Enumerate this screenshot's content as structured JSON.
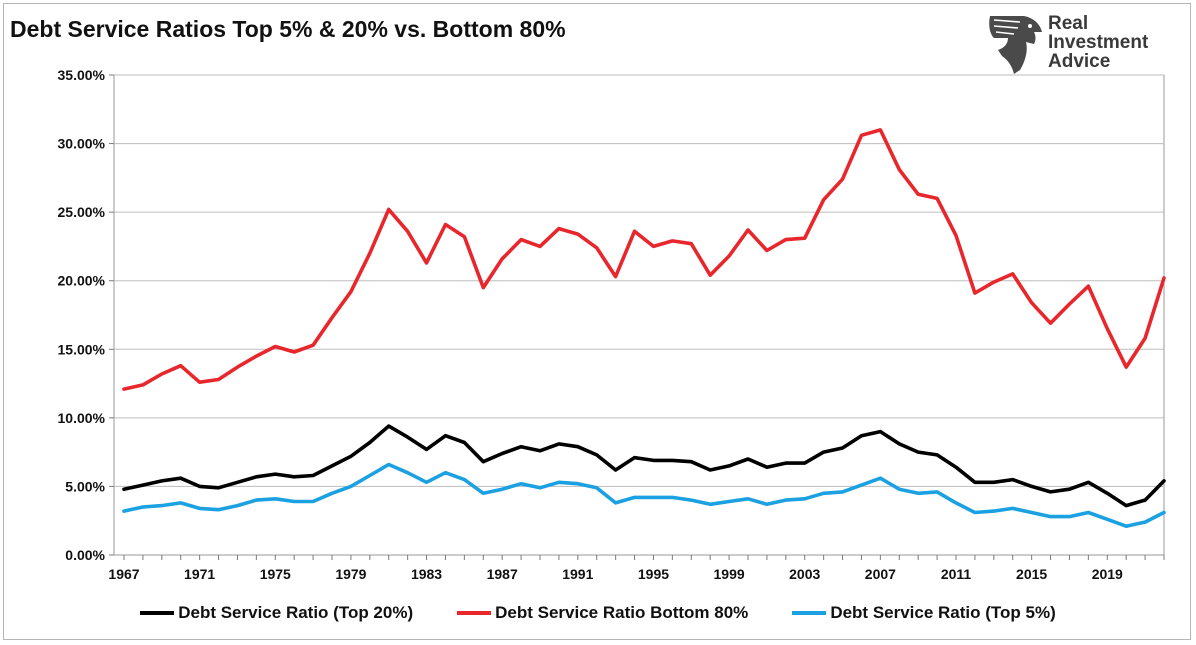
{
  "chart_data": {
    "type": "line",
    "title": "Debt Service Ratios Top 5% & 20% vs. Bottom 80%",
    "x": [
      1967,
      1968,
      1969,
      1970,
      1971,
      1972,
      1973,
      1974,
      1975,
      1976,
      1977,
      1978,
      1979,
      1980,
      1981,
      1982,
      1983,
      1984,
      1985,
      1986,
      1987,
      1988,
      1989,
      1990,
      1991,
      1992,
      1993,
      1994,
      1995,
      1996,
      1997,
      1998,
      1999,
      2000,
      2001,
      2002,
      2003,
      2004,
      2005,
      2006,
      2007,
      2008,
      2009,
      2010,
      2011,
      2012,
      2013,
      2014,
      2015,
      2016,
      2017,
      2018,
      2019,
      2020,
      2021,
      2022
    ],
    "x_tick_labels": [
      "1967",
      "1971",
      "1975",
      "1979",
      "1983",
      "1987",
      "1991",
      "1995",
      "1999",
      "2003",
      "2007",
      "2011",
      "2015",
      "2019"
    ],
    "y_tick_labels": [
      "0.00%",
      "5.00%",
      "10.00%",
      "15.00%",
      "20.00%",
      "25.00%",
      "30.00%",
      "35.00%"
    ],
    "ylim": [
      0,
      35
    ],
    "grid": "horizontal",
    "legend_position": "bottom",
    "series": [
      {
        "name": "Debt Service Ratio (Top 20%)",
        "color": "#000000",
        "values": [
          4.8,
          5.1,
          5.4,
          5.6,
          5.0,
          4.9,
          5.3,
          5.7,
          5.9,
          5.7,
          5.8,
          6.5,
          7.2,
          8.2,
          9.4,
          8.6,
          7.7,
          8.7,
          8.2,
          6.8,
          7.4,
          7.9,
          7.6,
          8.1,
          7.9,
          7.3,
          6.2,
          7.1,
          6.9,
          6.9,
          6.8,
          6.2,
          6.5,
          7.0,
          6.4,
          6.7,
          6.7,
          7.5,
          7.8,
          8.7,
          9.0,
          8.1,
          7.5,
          7.3,
          6.4,
          5.3,
          5.3,
          5.5,
          5.0,
          4.6,
          4.8,
          5.3,
          4.5,
          3.6,
          4.0,
          5.4
        ]
      },
      {
        "name": "Debt Service Ratio Bottom 80%",
        "color": "#e8272d",
        "values": [
          12.1,
          12.4,
          13.2,
          13.8,
          12.6,
          12.8,
          13.7,
          14.5,
          15.2,
          14.8,
          15.3,
          17.3,
          19.2,
          22.0,
          25.2,
          23.6,
          21.3,
          24.1,
          23.2,
          19.5,
          21.6,
          23.0,
          22.5,
          23.8,
          23.4,
          22.4,
          20.3,
          23.6,
          22.5,
          22.9,
          22.7,
          20.4,
          21.8,
          23.7,
          22.2,
          23.0,
          23.1,
          25.9,
          27.4,
          30.6,
          31.0,
          28.1,
          26.3,
          26.0,
          23.3,
          19.1,
          19.9,
          20.5,
          18.4,
          16.9,
          18.3,
          19.6,
          16.5,
          13.7,
          15.8,
          20.2
        ]
      },
      {
        "name": "Debt Service Ratio (Top 5%)",
        "color": "#1ba1e2",
        "values": [
          3.2,
          3.5,
          3.6,
          3.8,
          3.4,
          3.3,
          3.6,
          4.0,
          4.1,
          3.9,
          3.9,
          4.5,
          5.0,
          5.8,
          6.6,
          6.0,
          5.3,
          6.0,
          5.5,
          4.5,
          4.8,
          5.2,
          4.9,
          5.3,
          5.2,
          4.9,
          3.8,
          4.2,
          4.2,
          4.2,
          4.0,
          3.7,
          3.9,
          4.1,
          3.7,
          4.0,
          4.1,
          4.5,
          4.6,
          5.1,
          5.6,
          4.8,
          4.5,
          4.6,
          3.8,
          3.1,
          3.2,
          3.4,
          3.1,
          2.8,
          2.8,
          3.1,
          2.6,
          2.1,
          2.4,
          3.1
        ]
      }
    ]
  },
  "logo": {
    "line1": "Real",
    "line2": "Investment",
    "line3": "Advice"
  }
}
